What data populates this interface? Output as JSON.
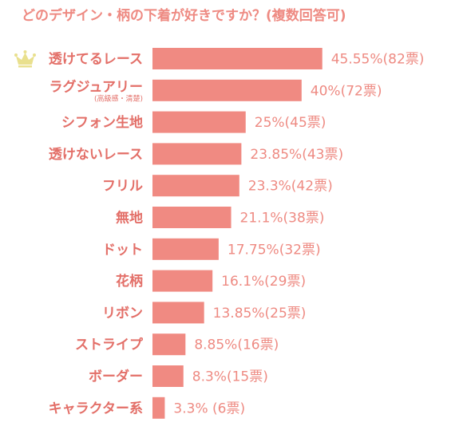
{
  "chart_data": {
    "type": "bar",
    "orientation": "horizontal",
    "title": "どのデザイン・柄の下着が好きですか？(複数回答可)",
    "categories": [
      "透けてるレース",
      "ラグジュアリー",
      "シフォン生地",
      "透けないレース",
      "フリル",
      "無地",
      "ドット",
      "花柄",
      "リボン",
      "ストライプ",
      "ボーダー",
      "キャラクター系"
    ],
    "category_notes": [
      "",
      "(高級感・清楚)",
      "",
      "",
      "",
      "",
      "",
      "",
      "",
      "",
      "",
      ""
    ],
    "values": [
      45.55,
      40,
      25,
      23.85,
      23.3,
      21.1,
      17.75,
      16.1,
      13.85,
      8.85,
      8.3,
      3.3
    ],
    "value_labels": [
      "45.55%(82票)",
      "40%(72票)",
      "25%(45票)",
      "23.85%(43票)",
      "23.3%(42票)",
      "21.1%(38票)",
      "17.75%(32票)",
      "16.1%(29票)",
      "13.85%(25票)",
      "8.85%(16票)",
      "8.3%(15票)",
      "3.3% (6票)"
    ],
    "xlim": [
      0,
      100
    ],
    "grid": false,
    "legend": "none",
    "colors": {
      "bar": "#f08a82",
      "label": "#e36f68",
      "value": "#ee8a82",
      "crown": "#e9e08e"
    },
    "icons": [
      "crown-icon"
    ]
  }
}
